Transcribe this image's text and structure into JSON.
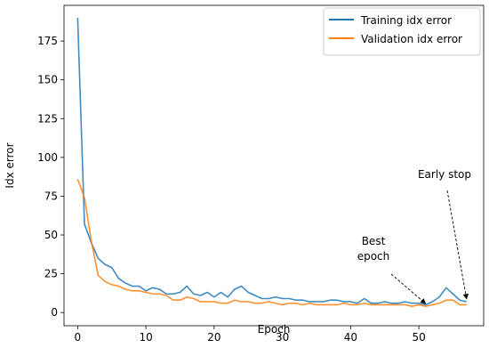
{
  "chart_data": {
    "type": "line",
    "xlabel": "Epoch",
    "ylabel": "Idx error",
    "xlim": [
      -2,
      59.5
    ],
    "ylim": [
      -8.5,
      198
    ],
    "x_ticks": [
      0,
      10,
      20,
      30,
      40,
      50
    ],
    "y_ticks": [
      0,
      25,
      50,
      75,
      100,
      125,
      150,
      175
    ],
    "legend_position": "top-right",
    "grid": false,
    "series": [
      {
        "name": "Training idx error",
        "color": "#1f77b4",
        "x": [
          0,
          1,
          2,
          3,
          4,
          5,
          6,
          7,
          8,
          9,
          10,
          11,
          12,
          13,
          14,
          15,
          16,
          17,
          18,
          19,
          20,
          21,
          22,
          23,
          24,
          25,
          26,
          27,
          28,
          29,
          30,
          31,
          32,
          33,
          34,
          35,
          36,
          37,
          38,
          39,
          40,
          41,
          42,
          43,
          44,
          45,
          46,
          47,
          48,
          49,
          50,
          51,
          52,
          53,
          54,
          55,
          56,
          57
        ],
        "values": [
          190,
          57,
          45,
          35,
          31,
          29,
          22,
          19,
          17,
          17,
          14,
          16,
          15,
          12,
          12,
          13,
          17,
          12,
          11,
          13,
          10,
          13,
          10,
          15,
          17,
          13,
          11,
          9,
          9,
          10,
          9,
          9,
          8,
          8,
          7,
          7,
          7,
          8,
          8,
          7,
          7,
          6,
          9,
          6,
          6,
          7,
          6,
          6,
          7,
          6,
          6,
          5,
          7,
          10,
          16,
          12,
          8,
          7
        ]
      },
      {
        "name": "Validation idx error",
        "color": "#ff7f0e",
        "x": [
          0,
          1,
          2,
          3,
          4,
          5,
          6,
          7,
          8,
          9,
          10,
          11,
          12,
          13,
          14,
          15,
          16,
          17,
          18,
          19,
          20,
          21,
          22,
          23,
          24,
          25,
          26,
          27,
          28,
          29,
          30,
          31,
          32,
          33,
          34,
          35,
          36,
          37,
          38,
          39,
          40,
          41,
          42,
          43,
          44,
          45,
          46,
          47,
          48,
          49,
          50,
          51,
          52,
          53,
          54,
          55,
          56,
          57
        ],
        "values": [
          86,
          74,
          46,
          24,
          20,
          18,
          17,
          15,
          14,
          14,
          13,
          12,
          12,
          11,
          8,
          8,
          10,
          9,
          7,
          7,
          7,
          6,
          6,
          8,
          7,
          7,
          6,
          6,
          7,
          6,
          5,
          6,
          6,
          5,
          6,
          5,
          5,
          5,
          5,
          6,
          5,
          5,
          6,
          5,
          5,
          5,
          5,
          5,
          5,
          4,
          5,
          4,
          5,
          6,
          8,
          8,
          5,
          5
        ]
      }
    ],
    "annotations": [
      {
        "text_lines": [
          "Best",
          "epoch"
        ],
        "xy": [
          51,
          4
        ]
      },
      {
        "text_lines": [
          "Early stop"
        ],
        "xy": [
          57,
          7
        ]
      }
    ]
  }
}
